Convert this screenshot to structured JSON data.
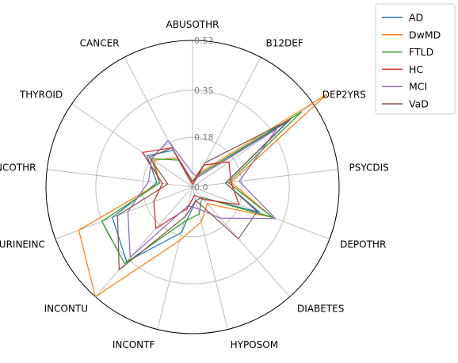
{
  "chart_data": {
    "type": "radar",
    "categories": [
      "ABUSOTHR",
      "B12DEF",
      "DEP2YRS",
      "PSYCDIS",
      "DEPOTHR",
      "DIABETES",
      "HYPOSOM",
      "INCONTF",
      "INCONTU",
      "URINEINC",
      "NCOTHR",
      "THYROID",
      "CANCER"
    ],
    "rticks": [
      0.0,
      0.18,
      0.35,
      0.53
    ],
    "rtick_labels": [
      "0.0",
      "0.18",
      "0.35",
      "0.53"
    ],
    "rlim": [
      0,
      0.53
    ],
    "grid": true,
    "legend_position": "upper-right-outside",
    "series": [
      {
        "name": "AD",
        "color": "#1f77b4",
        "values": [
          0.02,
          0.05,
          0.42,
          0.12,
          0.26,
          0.05,
          0.05,
          0.17,
          0.36,
          0.31,
          0.13,
          0.2,
          0.15
        ]
      },
      {
        "name": "DwMD",
        "color": "#ff7f0e",
        "values": [
          0.02,
          0.06,
          0.59,
          0.14,
          0.31,
          0.08,
          0.13,
          0.2,
          0.53,
          0.44,
          0.12,
          0.17,
          0.12
        ]
      },
      {
        "name": "FTLD",
        "color": "#2ca02c",
        "values": [
          0.02,
          0.05,
          0.48,
          0.13,
          0.31,
          0.05,
          0.1,
          0.13,
          0.37,
          0.35,
          0.12,
          0.18,
          0.11
        ]
      },
      {
        "name": "HC",
        "color": "#d62728",
        "values": [
          0.01,
          0.09,
          0.16,
          0.14,
          0.18,
          0.06,
          0.03,
          0.08,
          0.2,
          0.15,
          0.11,
          0.22,
          0.16
        ]
      },
      {
        "name": "MCI",
        "color": "#9467bd",
        "values": [
          0.05,
          0.04,
          0.37,
          0.17,
          0.32,
          0.15,
          0.08,
          0.07,
          0.34,
          0.25,
          0.16,
          0.18,
          0.19
        ]
      },
      {
        "name": "VaD",
        "color": "#8c564b",
        "values": [
          0.02,
          0.1,
          0.43,
          0.12,
          0.25,
          0.25,
          0.05,
          0.11,
          0.4,
          0.29,
          0.09,
          0.19,
          0.16
        ]
      }
    ]
  }
}
